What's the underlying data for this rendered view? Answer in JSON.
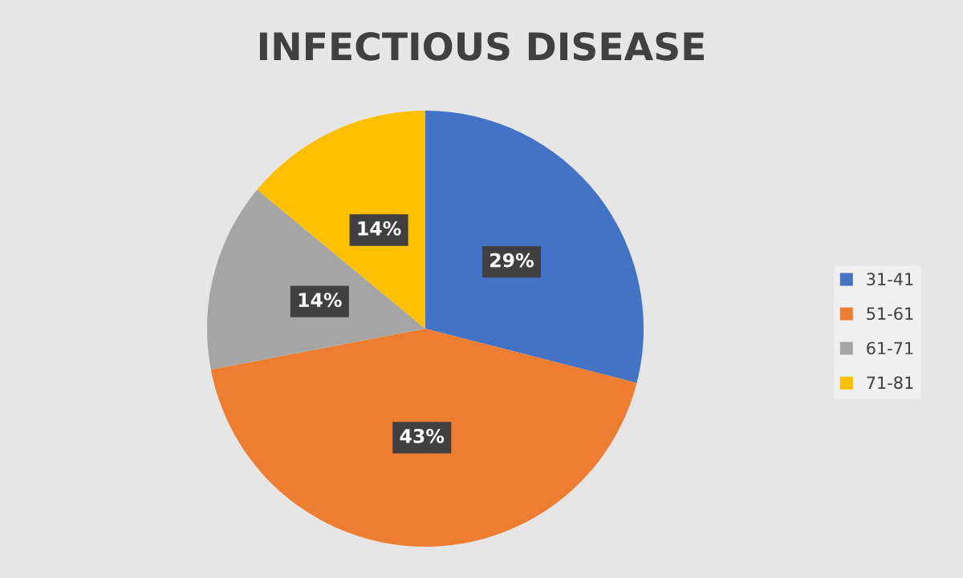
{
  "chart_data": {
    "type": "pie",
    "title": "INFECTIOUS DISEASE",
    "categories": [
      "31-41",
      "51-61",
      "61-71",
      "71-81"
    ],
    "values": [
      29,
      43,
      14,
      14
    ],
    "colors": [
      "#4472c4",
      "#ed7d31",
      "#a5a5a5",
      "#ffc000"
    ],
    "value_labels": [
      "29%",
      "43%",
      "14%",
      "14%"
    ],
    "legend": "right"
  }
}
